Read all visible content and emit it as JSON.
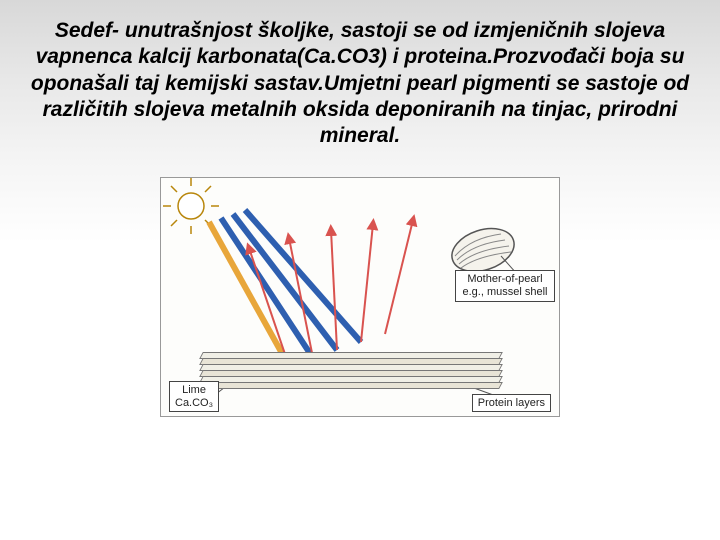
{
  "heading": "Sedef- unutrašnjost školjke, sastoji se od izmjeničnih slojeva vapnenca kalcij karbonata(Ca.CO3) i proteina.Prozvođači boja su oponašali taj kemijski sastav.Umjetni pearl pigmenti se sastoje od različitih slojeva metalnih oksida deponiranih na tinjac, prirodni mineral.",
  "diagram": {
    "label_mother": "Mother-of-pearl\ne.g., mussel shell",
    "label_lime": "Lime\nCa.CO₃",
    "label_protein": "Protein layers",
    "colors": {
      "sun": "#f5a623",
      "ray_in_blue": "#2e5fb0",
      "ray_in_yellow": "#e8a63a",
      "arrow_up": "#d9534f",
      "box_border": "#444444",
      "edge": "#777777"
    }
  }
}
